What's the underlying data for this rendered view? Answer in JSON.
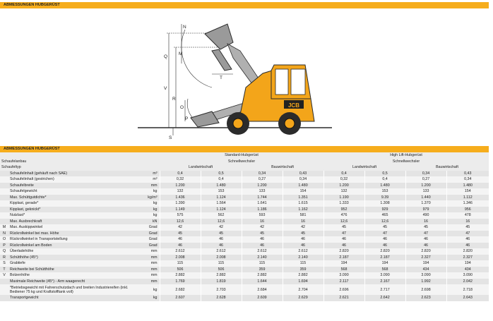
{
  "section1_title": "ABMESSUNGEN HUBGERÜST",
  "section2_title": "ABMESSUNGEN HUBGERÜST",
  "diagram": {
    "labels": [
      "N",
      "Q",
      "M",
      "V",
      "R",
      "T",
      "O",
      "P",
      "S"
    ],
    "brand": "JCB",
    "colors": {
      "body": "#f3a51a",
      "outline": "#2b2b2b"
    }
  },
  "header": {
    "col_standard": "Standard-Hubgerüst",
    "col_highlift": "High Lift-Hubgerüst",
    "schaufelanbau_label": "Schaufelanbau",
    "schaufeltyp_label": "Schaufeltyp",
    "schnellwechsler": "Schnellwechsler",
    "landwirtschaft": "Landwirtschaft",
    "bauwirtschaft": "Bauwirtschaft"
  },
  "rows": [
    {
      "letter": "",
      "label": "Schaufelinhalt (gehäuft nach SAE)",
      "unit": "m³",
      "values": [
        "0,4",
        "0,5",
        "0,34",
        "0,43",
        "0,4",
        "0,5",
        "0,34",
        "0,43"
      ]
    },
    {
      "letter": "",
      "label": "Schaufelinhalt (gestrichen)",
      "unit": "m³",
      "values": [
        "0,32",
        "0,4",
        "0,27",
        "0,34",
        "0,32",
        "0,4",
        "0,27",
        "0,34"
      ]
    },
    {
      "letter": "",
      "label": "Schaufelbreite",
      "unit": "mm",
      "values": [
        "1.200",
        "1.480",
        "1.200",
        "1.480",
        "1.200",
        "1.480",
        "1.200",
        "1.480"
      ]
    },
    {
      "letter": "",
      "label": "Schaufelgewicht",
      "unit": "kg",
      "values": [
        "132",
        "153",
        "133",
        "154",
        "132",
        "153",
        "133",
        "154"
      ]
    },
    {
      "letter": "",
      "label": "Max. Schüttgutdichte*",
      "unit": "kg/m³",
      "values": [
        "1.436",
        "1.124",
        "1.744",
        "1.351",
        "1.190",
        "9.39",
        "1.440",
        "1.112"
      ]
    },
    {
      "letter": "",
      "label": "Kipplast, gerade*",
      "unit": "kg",
      "values": [
        "1.390",
        "1.564",
        "1.641",
        "1.615",
        "1.333",
        "1.308",
        "1.370",
        "1.346"
      ]
    },
    {
      "letter": "",
      "label": "Kipplast, geknickt*",
      "unit": "kg",
      "values": [
        "1.149",
        "1.124",
        "1.186",
        "1.162",
        "952",
        "929",
        "979",
        "956"
      ]
    },
    {
      "letter": "",
      "label": "Nutzlast*",
      "unit": "kg",
      "values": [
        "575",
        "562",
        "593",
        "581",
        "476",
        "465",
        "490",
        "478"
      ]
    },
    {
      "letter": "",
      "label": "Max. Ausbrechkraft",
      "unit": "kN",
      "values": [
        "12,6",
        "12,6",
        "16",
        "16",
        "12,6",
        "12,6",
        "16",
        "16"
      ]
    },
    {
      "letter": "M",
      "label": "Max. Auskippwinkel",
      "unit": "Grad",
      "values": [
        "42",
        "42",
        "42",
        "42",
        "45",
        "45",
        "45",
        "45"
      ]
    },
    {
      "letter": "N",
      "label": "Rückrollwinkel bei max. Höhe",
      "unit": "Grad",
      "values": [
        "45",
        "45",
        "45",
        "45",
        "47",
        "47",
        "47",
        "47"
      ]
    },
    {
      "letter": "O",
      "label": "Rückrollwinkel in Transportstellung",
      "unit": "Grad",
      "values": [
        "46",
        "46",
        "46",
        "46",
        "46",
        "46",
        "46",
        "46"
      ]
    },
    {
      "letter": "P",
      "label": "Rückrollwinkel am Boden",
      "unit": "Grad",
      "values": [
        "46",
        "46",
        "46",
        "46",
        "46",
        "46",
        "46",
        "46"
      ]
    },
    {
      "letter": "Q",
      "label": "Überladehöhe",
      "unit": "mm",
      "values": [
        "2.612",
        "2.612",
        "2.612",
        "2.612",
        "2.820",
        "2.820",
        "2.820",
        "2.820"
      ]
    },
    {
      "letter": "R",
      "label": "Schütthöhe (45°)",
      "unit": "mm",
      "values": [
        "2.008",
        "2.008",
        "2.140",
        "2.140",
        "2.187",
        "2.187",
        "2.327",
        "2.327"
      ]
    },
    {
      "letter": "S",
      "label": "Grabtiefe",
      "unit": "mm",
      "values": [
        "115",
        "115",
        "115",
        "115",
        "194",
        "194",
        "194",
        "194"
      ]
    },
    {
      "letter": "T",
      "label": "Reichweite bei Schütthöhe",
      "unit": "mm",
      "values": [
        "506",
        "506",
        "359",
        "359",
        "568",
        "568",
        "434",
        "434"
      ]
    },
    {
      "letter": "V",
      "label": "Bolzenhöhe",
      "unit": "mm",
      "values": [
        "2.882",
        "2.882",
        "2.882",
        "2.882",
        "3.090",
        "3.090",
        "3.090",
        "3.090"
      ]
    },
    {
      "letter": "",
      "label": "Maximale Reichweite (45°) - Arm waagerecht",
      "unit": "mm",
      "values": [
        "1.769",
        "1.819",
        "1.644",
        "1.694",
        "2.117",
        "2.167",
        "1.992",
        "2.042"
      ]
    },
    {
      "letter": "",
      "label": "*Betriebsgewicht mit Fahrerschutzdach und breiten Industriereifen (inkl. Bediener 75 kg und Kraftstofftank voll)",
      "unit": "kg",
      "values": [
        "2.682",
        "2.703",
        "2.684",
        "2.704",
        "2.696",
        "2.717",
        "2.698",
        "2.718"
      ],
      "tall": true
    },
    {
      "letter": "",
      "label": "Transportgewicht",
      "unit": "kg",
      "values": [
        "2.607",
        "2.628",
        "2.609",
        "2.629",
        "2.621",
        "2.642",
        "2.623",
        "2.643"
      ]
    }
  ]
}
